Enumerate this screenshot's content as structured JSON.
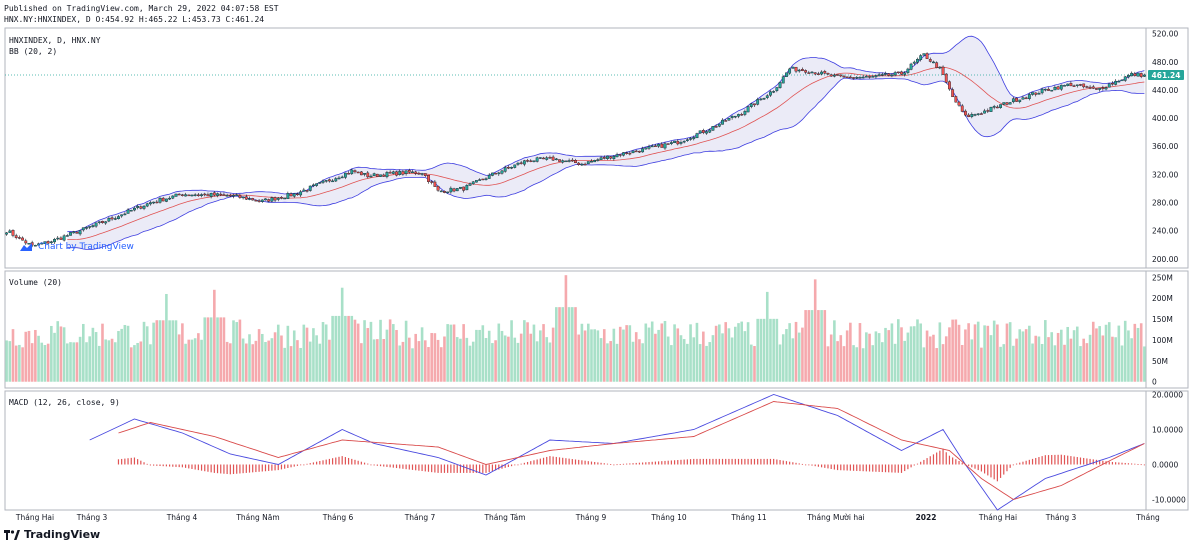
{
  "header": {
    "published": "Published on TradingView.com, March 29, 2022 04:07:58 EST",
    "ohlc": "HNX.NY:HNXINDEX, D O:454.92 H:465.22 L:453.73 C:461.24"
  },
  "legend": {
    "symbol": "HNXINDEX, D, HNX.NY",
    "bb": "BB (20, 2)",
    "volume": "Volume (20)",
    "macd": "MACD (12, 26, close, 9)"
  },
  "watermark": "Chart by TradingView",
  "footer": {
    "brand": "TradingView"
  },
  "colors": {
    "up": "#26a69a",
    "down": "#ef5350",
    "vol_up": "#a8e0c8",
    "vol_down": "#f5a9ad",
    "band": "#e6e6f5",
    "band_line": "#3d3de0",
    "basis": "#e05353",
    "macd_line": "#4a4adf",
    "signal_line": "#d94a4a",
    "last_price_bg": "#26a69a"
  },
  "last_price": "461.24",
  "chart_data": [
    {
      "type": "candlestick",
      "title": "HNXINDEX, D, HNX.NY",
      "x_ticks": [
        "Tháng Hai",
        "Tháng 3",
        "Tháng 4",
        "Tháng Năm",
        "Tháng 6",
        "Tháng 7",
        "Tháng Tám",
        "Tháng 9",
        "Tháng 10",
        "Tháng 11",
        "Tháng Mười hai",
        "2022",
        "Tháng Hai",
        "Tháng 3",
        "Tháng"
      ],
      "y_ticks": [
        "520.00",
        "480.00",
        "440.00",
        "400.00",
        "360.00",
        "320.00",
        "280.00",
        "240.00",
        "200.00"
      ],
      "ylim": [
        187,
        528
      ],
      "close_anchors": [
        [
          0,
          240
        ],
        [
          8,
          218
        ],
        [
          14,
          225
        ],
        [
          30,
          252
        ],
        [
          45,
          280
        ],
        [
          55,
          292
        ],
        [
          70,
          290
        ],
        [
          80,
          282
        ],
        [
          90,
          292
        ],
        [
          100,
          310
        ],
        [
          108,
          325
        ],
        [
          113,
          318
        ],
        [
          123,
          322
        ],
        [
          130,
          323
        ],
        [
          135,
          296
        ],
        [
          143,
          300
        ],
        [
          153,
          322
        ],
        [
          163,
          340
        ],
        [
          171,
          342
        ],
        [
          180,
          335
        ],
        [
          190,
          347
        ],
        [
          200,
          356
        ],
        [
          210,
          366
        ],
        [
          220,
          385
        ],
        [
          230,
          408
        ],
        [
          240,
          440
        ],
        [
          245,
          470
        ],
        [
          250,
          468
        ],
        [
          260,
          458
        ],
        [
          270,
          458
        ],
        [
          280,
          463
        ],
        [
          287,
          490
        ],
        [
          292,
          470
        ],
        [
          296,
          430
        ],
        [
          300,
          402
        ],
        [
          305,
          408
        ],
        [
          315,
          425
        ],
        [
          325,
          440
        ],
        [
          333,
          448
        ],
        [
          341,
          440
        ],
        [
          352,
          462
        ],
        [
          356,
          461.24
        ]
      ],
      "n_bars": 357
    },
    {
      "type": "bar",
      "title": "Volume (20)",
      "y_ticks": [
        "250M",
        "200M",
        "150M",
        "100M",
        "50M",
        "0"
      ],
      "ylim": [
        -15,
        265
      ],
      "typical_range_M": [
        80,
        150
      ],
      "peaks_M": [
        [
          50,
          210
        ],
        [
          65,
          220
        ],
        [
          105,
          225
        ],
        [
          175,
          255
        ],
        [
          238,
          215
        ],
        [
          253,
          245
        ]
      ]
    },
    {
      "type": "line",
      "title": "MACD (12, 26, close, 9)",
      "series": [
        {
          "name": "MACD"
        },
        {
          "name": "Signal"
        },
        {
          "name": "Histogram"
        }
      ],
      "y_ticks": [
        "20.0000",
        "10.0000",
        "0.0000",
        "-10.0000"
      ],
      "ylim": [
        -13,
        21
      ],
      "macd_anchors": [
        [
          26,
          7
        ],
        [
          40,
          13
        ],
        [
          55,
          9
        ],
        [
          70,
          3
        ],
        [
          85,
          0
        ],
        [
          105,
          10
        ],
        [
          115,
          6
        ],
        [
          135,
          2
        ],
        [
          150,
          -3
        ],
        [
          170,
          7
        ],
        [
          190,
          6
        ],
        [
          215,
          10
        ],
        [
          240,
          20
        ],
        [
          260,
          14
        ],
        [
          280,
          4
        ],
        [
          293,
          10
        ],
        [
          300,
          0
        ],
        [
          310,
          -13
        ],
        [
          325,
          -4
        ],
        [
          345,
          2
        ],
        [
          356,
          6
        ]
      ],
      "signal_anchors": [
        [
          35,
          9
        ],
        [
          45,
          12
        ],
        [
          65,
          8
        ],
        [
          85,
          2
        ],
        [
          105,
          7
        ],
        [
          135,
          5
        ],
        [
          150,
          0
        ],
        [
          170,
          4
        ],
        [
          190,
          6
        ],
        [
          215,
          8
        ],
        [
          240,
          18
        ],
        [
          260,
          16
        ],
        [
          280,
          7
        ],
        [
          295,
          4
        ],
        [
          305,
          -4
        ],
        [
          315,
          -10
        ],
        [
          330,
          -6
        ],
        [
          345,
          1
        ],
        [
          356,
          6
        ]
      ]
    }
  ]
}
